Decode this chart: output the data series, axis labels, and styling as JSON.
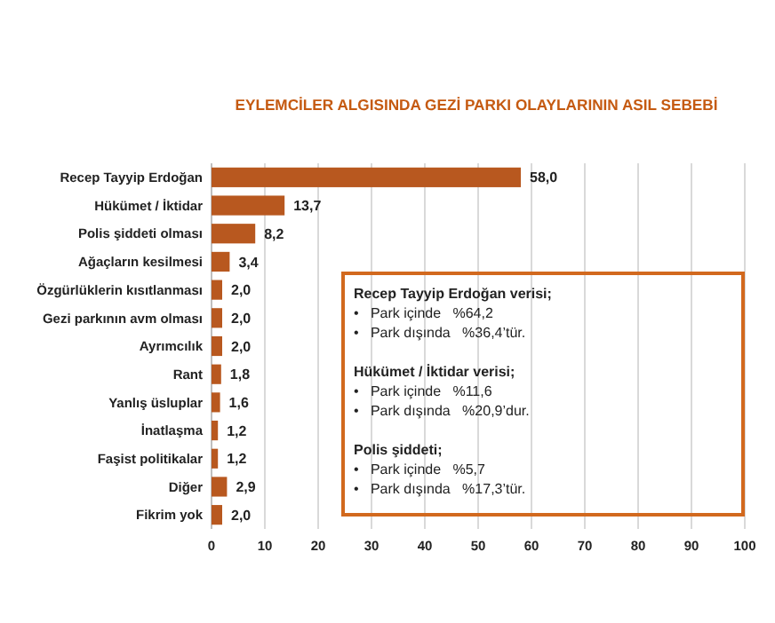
{
  "chart_data": {
    "type": "bar",
    "orientation": "horizontal",
    "title": "EYLEMCİLER ALGISINDA GEZİ PARKI OLAYLARININ ASIL SEBEBİ",
    "categories": [
      "Recep Tayyip Erdoğan",
      "Hükümet / İktidar",
      "Polis şiddeti olması",
      "Ağaçların kesilmesi",
      "Özgürlüklerin kısıtlanması",
      "Gezi parkının avm olması",
      "Ayrımcılık",
      "Rant",
      "Yanlış üsluplar",
      "İnatlaşma",
      "Faşist politikalar",
      "Diğer",
      "Fikrim yok"
    ],
    "values": [
      58.0,
      13.7,
      8.2,
      3.4,
      2.0,
      2.0,
      2.0,
      1.8,
      1.6,
      1.2,
      1.2,
      2.9,
      2.0
    ],
    "value_labels": [
      "58,0",
      "13,7",
      "8,2",
      "3,4",
      "2,0",
      "2,0",
      "2,0",
      "1,8",
      "1,6",
      "1,2",
      "1,2",
      "2,9",
      "2,0"
    ],
    "color": "#b8581f",
    "xlim": [
      0,
      100
    ],
    "xticks": [
      0,
      10,
      20,
      30,
      40,
      50,
      60,
      70,
      80,
      90,
      100
    ],
    "grid": "x",
    "annotations": [
      "Recep Tayyip Erdoğan verisi;",
      "•   Park içinde   %64,2",
      "•   Park dışında   %36,4’tür.",
      "Hükümet / İktidar verisi;",
      "•   Park içinde   %11,6",
      "•   Park dışında   %20,9’dur.",
      "Polis şiddeti;",
      "•   Park içinde   %5,7",
      "•   Park dışında   %17,3’tür."
    ]
  }
}
